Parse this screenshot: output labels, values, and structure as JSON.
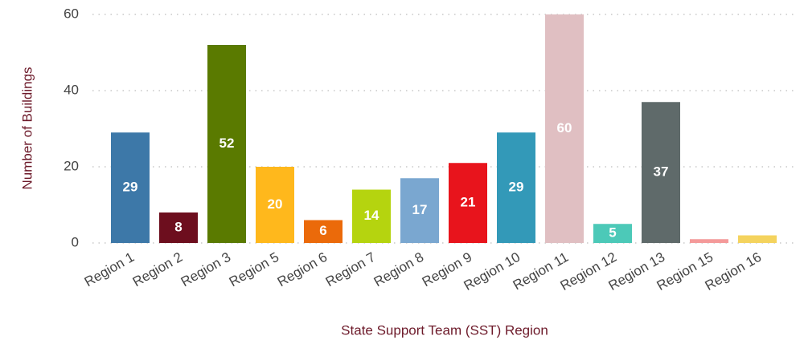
{
  "chart_data": {
    "type": "bar",
    "x_label": "State Support Team (SST) Region",
    "y_label": "Number of Buildings",
    "categories": [
      "Region 1",
      "Region 2",
      "Region 3",
      "Region 5",
      "Region 6",
      "Region 7",
      "Region 8",
      "Region 9",
      "Region 10",
      "Region 11",
      "Region 12",
      "Region 13",
      "Region 15",
      "Region 16"
    ],
    "values": [
      29,
      8,
      52,
      20,
      6,
      14,
      17,
      21,
      29,
      60,
      5,
      37,
      1,
      2
    ],
    "colors": [
      "#3d78a8",
      "#6d0e1e",
      "#5a7a00",
      "#ffb81c",
      "#eb6a0a",
      "#b5d40f",
      "#7aa7d0",
      "#e8141c",
      "#3399b8",
      "#e0bfc2",
      "#4cc9b8",
      "#5f6a6a",
      "#f49a9a",
      "#f4d35e"
    ],
    "ylim": [
      0,
      60
    ],
    "yticks": [
      0,
      20,
      40,
      60
    ],
    "grid": true
  }
}
